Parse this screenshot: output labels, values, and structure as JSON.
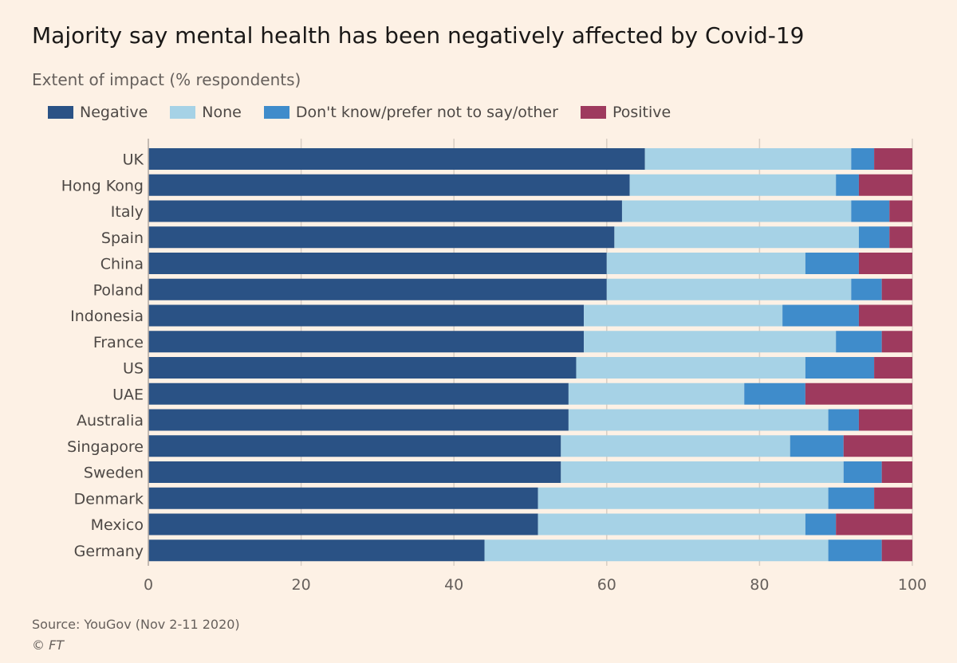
{
  "chart_data": {
    "type": "bar",
    "orientation": "horizontal",
    "stacked": true,
    "title": "Majority say mental health has been negatively affected by Covid-19",
    "subtitle": "Extent of impact (% respondents)",
    "categories": [
      "UK",
      "Hong Kong",
      "Italy",
      "Spain",
      "China",
      "Poland",
      "Indonesia",
      "France",
      "US",
      "UAE",
      "Australia",
      "Singapore",
      "Sweden",
      "Denmark",
      "Mexico",
      "Germany"
    ],
    "series": [
      {
        "name": "Negative",
        "color": "#2a5285",
        "values": [
          65,
          63,
          62,
          61,
          60,
          60,
          57,
          57,
          56,
          55,
          55,
          54,
          54,
          51,
          51,
          44
        ]
      },
      {
        "name": "None",
        "color": "#a6d2e6",
        "values": [
          27,
          27,
          30,
          32,
          26,
          32,
          26,
          33,
          30,
          23,
          34,
          30,
          37,
          38,
          35,
          45
        ]
      },
      {
        "name": "Don't know/prefer not to say/other",
        "color": "#3f8ccb",
        "values": [
          3,
          3,
          5,
          4,
          7,
          4,
          10,
          6,
          9,
          8,
          4,
          7,
          5,
          6,
          4,
          7
        ]
      },
      {
        "name": "Positive",
        "color": "#9e3a5e",
        "values": [
          5,
          7,
          3,
          3,
          7,
          4,
          7,
          4,
          5,
          14,
          7,
          9,
          4,
          5,
          10,
          4
        ]
      }
    ],
    "xlim": [
      0,
      100
    ],
    "xticks": [
      "0",
      "20",
      "40",
      "60",
      "80",
      "100"
    ],
    "grid": true,
    "legend": "top-left"
  },
  "source": "Source: YouGov (Nov 2-11 2020)",
  "copyright": "© FT"
}
